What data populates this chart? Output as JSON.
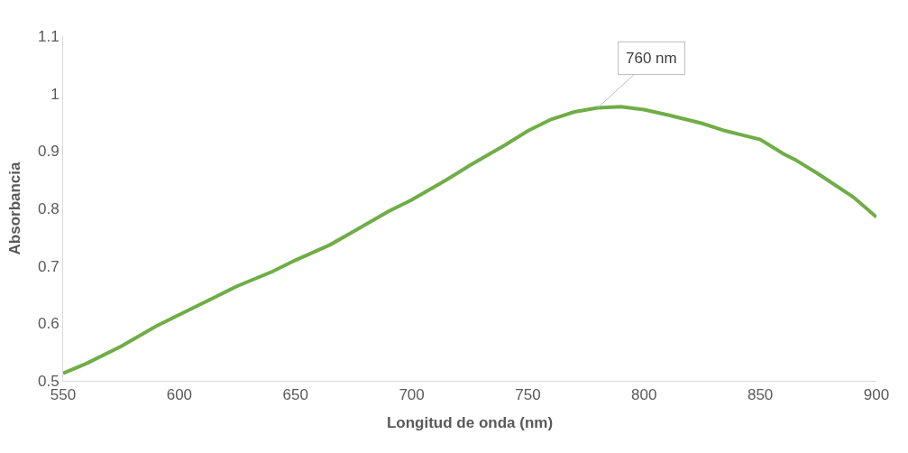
{
  "chart_data": {
    "type": "line",
    "xlabel": "Longitud de onda (nm)",
    "ylabel": "Absorbancia",
    "x": [
      550,
      560,
      575,
      590,
      600,
      615,
      625,
      640,
      650,
      665,
      675,
      690,
      700,
      715,
      725,
      740,
      750,
      760,
      770,
      780,
      790,
      800,
      810,
      825,
      835,
      845,
      850,
      860,
      865,
      875,
      890,
      900
    ],
    "series": [
      {
        "color": "#70ad47",
        "values": [
          0.513,
          0.53,
          0.56,
          0.595,
          0.615,
          0.645,
          0.665,
          0.69,
          0.71,
          0.737,
          0.76,
          0.795,
          0.815,
          0.85,
          0.875,
          0.91,
          0.935,
          0.955,
          0.968,
          0.975,
          0.977,
          0.972,
          0.963,
          0.948,
          0.935,
          0.925,
          0.92,
          0.895,
          0.885,
          0.86,
          0.82,
          0.785
        ]
      }
    ],
    "annotations": [
      {
        "text": "760 nm",
        "x": 780,
        "y": 0.975
      }
    ],
    "xlim": [
      550,
      900
    ],
    "xticks": [
      550,
      600,
      650,
      700,
      750,
      800,
      850,
      900
    ],
    "ylim": [
      0.5,
      1.1
    ],
    "yticks": [
      0.5,
      0.6,
      0.7,
      0.8,
      0.9,
      1,
      1.1
    ],
    "grid": false,
    "legend": false,
    "marker": "none",
    "line_style": "solid"
  }
}
